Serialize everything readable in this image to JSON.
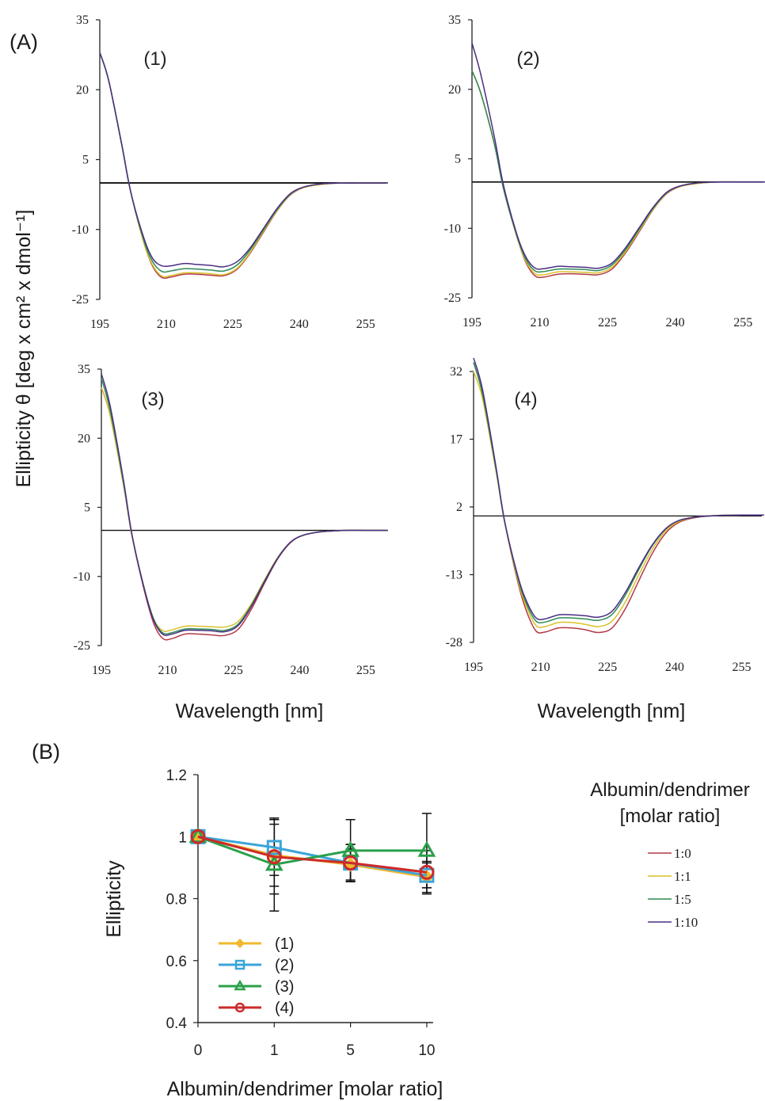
{
  "figure_label_a": "(A)",
  "figure_label_b": "(B)",
  "shared_ylabel": "Ellipticity θ [deg x cm² x dmol⁻¹]",
  "panel_a_xlabel": "Wavelength [nm]",
  "legend_a": {
    "title_line1": "Albumin/dendrimer",
    "title_line2": "[molar ratio]",
    "items": [
      {
        "label": "1:0",
        "color": "#b23a48"
      },
      {
        "label": "1:1",
        "color": "#d9c12a"
      },
      {
        "label": "1:5",
        "color": "#2e8b57"
      },
      {
        "label": "1:10",
        "color": "#4b2e83"
      }
    ]
  },
  "series_colors": [
    "#b23a48",
    "#d9c12a",
    "#2e8b57",
    "#4b2e83"
  ],
  "chart_data": [
    {
      "type": "line",
      "panel": "(1)",
      "xlabel": "Wavelength [nm]",
      "xlim": [
        195,
        260
      ],
      "xticks": [
        195,
        210,
        225,
        240,
        255
      ],
      "ylim": [
        -25,
        35
      ],
      "yticks": [
        35,
        20,
        5,
        -10,
        -25
      ],
      "baseline": 0,
      "series": [
        {
          "name": "1:0",
          "x": [
            195,
            197,
            200,
            202,
            205,
            207,
            209,
            211,
            214,
            217,
            220,
            223,
            226,
            229,
            232,
            235,
            238,
            241,
            245,
            250,
            255,
            260
          ],
          "y": [
            28,
            22,
            8,
            -2,
            -13,
            -18,
            -20.3,
            -20.2,
            -19.6,
            -19.6,
            -19.8,
            -19.9,
            -18.5,
            -15,
            -10.5,
            -6,
            -2.6,
            -1,
            -0.3,
            0,
            0,
            0
          ]
        },
        {
          "name": "1:1",
          "x": [
            195,
            197,
            200,
            202,
            205,
            207,
            209,
            211,
            214,
            217,
            220,
            223,
            226,
            229,
            232,
            235,
            238,
            241,
            245,
            250,
            255,
            260
          ],
          "y": [
            28,
            22,
            8,
            -2,
            -13,
            -17.7,
            -20,
            -19.9,
            -19.3,
            -19.3,
            -19.5,
            -19.7,
            -18.3,
            -14.8,
            -10.3,
            -5.9,
            -2.5,
            -1,
            -0.3,
            0,
            0,
            0
          ]
        },
        {
          "name": "1:5",
          "x": [
            195,
            197,
            200,
            202,
            205,
            207,
            209,
            211,
            214,
            217,
            220,
            223,
            226,
            229,
            232,
            235,
            238,
            241,
            245,
            250,
            255,
            260
          ],
          "y": [
            28,
            22,
            8,
            -2,
            -12.5,
            -17,
            -19,
            -18.9,
            -18.4,
            -18.5,
            -18.7,
            -18.9,
            -17.6,
            -14.3,
            -10,
            -5.7,
            -2.4,
            -0.9,
            -0.2,
            0,
            0,
            0
          ]
        },
        {
          "name": "1:10",
          "x": [
            195,
            197,
            200,
            202,
            205,
            207,
            209,
            211,
            214,
            217,
            220,
            223,
            226,
            229,
            232,
            235,
            238,
            241,
            245,
            250,
            255,
            260
          ],
          "y": [
            28,
            22,
            8,
            -2,
            -12,
            -16.3,
            -17.8,
            -17.8,
            -17.3,
            -17.5,
            -17.7,
            -18,
            -16.9,
            -13.9,
            -9.7,
            -5.5,
            -2.3,
            -0.9,
            -0.2,
            0,
            0,
            0
          ]
        }
      ]
    },
    {
      "type": "line",
      "panel": "(2)",
      "xlabel": "Wavelength [nm]",
      "xlim": [
        195,
        260
      ],
      "xticks": [
        195,
        210,
        225,
        240,
        255
      ],
      "ylim": [
        -25,
        35
      ],
      "yticks": [
        35,
        20,
        5,
        -10,
        -25
      ],
      "baseline": 0,
      "series": [
        {
          "name": "1:0",
          "x": [
            195,
            197,
            200,
            202,
            205,
            207,
            209,
            211,
            214,
            217,
            220,
            223,
            226,
            229,
            232,
            235,
            238,
            241,
            245,
            250,
            255,
            260
          ],
          "y": [
            24,
            19,
            8,
            -1.5,
            -12,
            -17.5,
            -20.3,
            -20.5,
            -19.9,
            -19.8,
            -19.9,
            -20,
            -18.8,
            -15.3,
            -10.8,
            -6.1,
            -2.6,
            -1,
            -0.3,
            0,
            0,
            0
          ]
        },
        {
          "name": "1:1",
          "x": [
            195,
            197,
            200,
            202,
            205,
            207,
            209,
            211,
            214,
            217,
            220,
            223,
            226,
            229,
            232,
            235,
            238,
            241,
            245,
            250,
            255,
            260
          ],
          "y": [
            24,
            19,
            8,
            -1.5,
            -12,
            -17.2,
            -19.8,
            -20,
            -19.4,
            -19.4,
            -19.5,
            -19.6,
            -18.4,
            -15,
            -10.5,
            -6,
            -2.5,
            -1,
            -0.3,
            0,
            0,
            0
          ]
        },
        {
          "name": "1:5",
          "x": [
            195,
            197,
            200,
            202,
            205,
            207,
            209,
            211,
            214,
            217,
            220,
            223,
            226,
            229,
            232,
            235,
            238,
            241,
            245,
            250,
            255,
            260
          ],
          "y": [
            24,
            19,
            8,
            -1.5,
            -11.8,
            -16.8,
            -19.2,
            -19.3,
            -18.8,
            -18.8,
            -18.9,
            -19.1,
            -17.9,
            -14.6,
            -10.2,
            -5.8,
            -2.4,
            -0.9,
            -0.2,
            0,
            0,
            0
          ]
        },
        {
          "name": "1:10",
          "x": [
            195,
            197,
            200,
            202,
            205,
            207,
            209,
            211,
            214,
            217,
            220,
            223,
            226,
            229,
            232,
            235,
            238,
            241,
            245,
            250,
            255,
            260
          ],
          "y": [
            30,
            23,
            9.5,
            -0.8,
            -11.5,
            -16.3,
            -18.6,
            -18.7,
            -18.2,
            -18.3,
            -18.4,
            -18.6,
            -17.5,
            -14.2,
            -9.9,
            -5.6,
            -2.3,
            -0.9,
            -0.2,
            0,
            0,
            0
          ]
        }
      ]
    },
    {
      "type": "line",
      "panel": "(3)",
      "xlabel": "Wavelength [nm]",
      "xlim": [
        195,
        260
      ],
      "xticks": [
        195,
        210,
        225,
        240,
        255
      ],
      "ylim": [
        -25,
        35
      ],
      "yticks": [
        35,
        20,
        5,
        -10,
        -25
      ],
      "baseline": 0,
      "series": [
        {
          "name": "1:0",
          "x": [
            195,
            197,
            200,
            202,
            205,
            207,
            209,
            211,
            214,
            217,
            220,
            223,
            226,
            229,
            232,
            235,
            238,
            241,
            245,
            250,
            255,
            260
          ],
          "y": [
            31,
            25,
            10,
            -1.5,
            -14,
            -20.5,
            -23.5,
            -23.5,
            -22.5,
            -22.5,
            -22.7,
            -22.8,
            -21.5,
            -17.2,
            -11.5,
            -6.2,
            -2.6,
            -1,
            -0.3,
            0,
            0,
            0
          ]
        },
        {
          "name": "1:1",
          "x": [
            195,
            197,
            200,
            202,
            205,
            207,
            209,
            211,
            214,
            217,
            220,
            223,
            226,
            229,
            232,
            235,
            238,
            241,
            245,
            250,
            255,
            260
          ],
          "y": [
            31,
            25,
            10,
            -1.5,
            -13.5,
            -19.5,
            -21.8,
            -21.6,
            -20.8,
            -20.8,
            -20.9,
            -21,
            -19.8,
            -16,
            -10.8,
            -5.9,
            -2.5,
            -1,
            -0.3,
            0,
            0,
            0
          ]
        },
        {
          "name": "1:5",
          "x": [
            195,
            197,
            200,
            202,
            205,
            207,
            209,
            211,
            214,
            217,
            220,
            223,
            226,
            229,
            232,
            235,
            238,
            241,
            245,
            250,
            255,
            260
          ],
          "y": [
            33,
            26,
            10.5,
            -1.3,
            -13.5,
            -19.6,
            -22.3,
            -22.2,
            -21.4,
            -21.4,
            -21.5,
            -21.7,
            -20.4,
            -16.3,
            -11,
            -6,
            -2.5,
            -1,
            -0.3,
            0,
            0,
            0
          ]
        },
        {
          "name": "1:10",
          "x": [
            195,
            197,
            200,
            202,
            205,
            207,
            209,
            211,
            214,
            217,
            220,
            223,
            226,
            229,
            232,
            235,
            238,
            241,
            245,
            250,
            255,
            260
          ],
          "y": [
            34,
            27,
            11,
            -1.2,
            -13.7,
            -19.8,
            -22.6,
            -22.5,
            -21.7,
            -21.7,
            -21.8,
            -22,
            -20.7,
            -16.6,
            -11.2,
            -6.1,
            -2.5,
            -1,
            -0.3,
            0,
            0,
            0
          ]
        }
      ]
    },
    {
      "type": "line",
      "panel": "(4)",
      "xlabel": "Wavelength [nm]",
      "xlim": [
        195,
        260
      ],
      "xticks": [
        195,
        210,
        225,
        240,
        255
      ],
      "ylim": [
        -28,
        34
      ],
      "yticks": [
        32,
        17,
        2,
        -13,
        -28
      ],
      "baseline": 0,
      "series": [
        {
          "name": "1:0",
          "x": [
            195,
            197,
            200,
            202,
            205,
            207,
            209,
            211,
            214,
            217,
            220,
            223,
            226,
            229,
            232,
            235,
            238,
            241,
            245,
            250,
            255,
            260
          ],
          "y": [
            34,
            27,
            10.5,
            -1.5,
            -15,
            -21.5,
            -25.5,
            -25.7,
            -24.8,
            -24.8,
            -25.2,
            -25.8,
            -24.8,
            -20.5,
            -14.3,
            -8.3,
            -3.8,
            -1.4,
            -0.3,
            0.1,
            0.2,
            0.2
          ]
        },
        {
          "name": "1:1",
          "x": [
            195,
            197,
            200,
            202,
            205,
            207,
            209,
            211,
            214,
            217,
            220,
            223,
            226,
            229,
            232,
            235,
            238,
            241,
            245,
            250,
            255,
            260
          ],
          "y": [
            32,
            26,
            10,
            -1.6,
            -14.5,
            -20.5,
            -24.3,
            -24.5,
            -23.6,
            -23.6,
            -24,
            -24.5,
            -23.3,
            -19,
            -13,
            -7.4,
            -3.3,
            -1.2,
            -0.2,
            0.1,
            0.2,
            0.2
          ]
        },
        {
          "name": "1:5",
          "x": [
            195,
            197,
            200,
            202,
            205,
            207,
            209,
            211,
            214,
            217,
            220,
            223,
            226,
            229,
            232,
            235,
            238,
            241,
            245,
            250,
            255,
            260
          ],
          "y": [
            34,
            27,
            10.5,
            -1.5,
            -14,
            -19.8,
            -23.3,
            -23.5,
            -22.6,
            -22.6,
            -22.8,
            -23.1,
            -21.8,
            -17.5,
            -11.8,
            -6.6,
            -2.9,
            -1,
            -0.2,
            0.1,
            0.2,
            0.2
          ]
        },
        {
          "name": "1:10",
          "x": [
            195,
            197,
            200,
            202,
            205,
            207,
            209,
            211,
            214,
            217,
            220,
            223,
            226,
            229,
            232,
            235,
            238,
            241,
            245,
            250,
            255,
            260
          ],
          "y": [
            35,
            28,
            11,
            -1.4,
            -13.6,
            -19.2,
            -22.6,
            -22.8,
            -21.9,
            -21.9,
            -22.1,
            -22.4,
            -21.1,
            -16.9,
            -11.4,
            -6.4,
            -2.8,
            -1,
            -0.2,
            0.1,
            0.2,
            0.2
          ]
        }
      ]
    },
    {
      "type": "line",
      "panel": "(B)",
      "xlabel": "Albumin/dendrimer [molar ratio]",
      "ylabel": "Ellipticity",
      "categories": [
        "0",
        "1",
        "5",
        "10"
      ],
      "ylim": [
        0.4,
        1.2
      ],
      "yticks": [
        0.4,
        0.6,
        0.8,
        1,
        1.2
      ],
      "series": [
        {
          "name": "(1)",
          "color": "#f2b82e",
          "marker": "diamond",
          "values": [
            1.0,
            0.94,
            0.91,
            0.87
          ],
          "err": [
            0,
            0.1,
            0.05,
            0.05
          ]
        },
        {
          "name": "(2)",
          "color": "#3aa5d8",
          "marker": "square",
          "values": [
            1.0,
            0.965,
            0.915,
            0.875
          ],
          "err": [
            0,
            0.09,
            0.06,
            0.04
          ]
        },
        {
          "name": "(3)",
          "color": "#2aa04a",
          "marker": "triangle",
          "values": [
            1.0,
            0.91,
            0.955,
            0.955
          ],
          "err": [
            0,
            0.15,
            0.1,
            0.12
          ]
        },
        {
          "name": "(4)",
          "color": "#cc2a2a",
          "marker": "circle",
          "values": [
            1.0,
            0.935,
            0.915,
            0.885
          ],
          "err": [
            0,
            0.12,
            0.06,
            0.07
          ]
        }
      ]
    }
  ]
}
